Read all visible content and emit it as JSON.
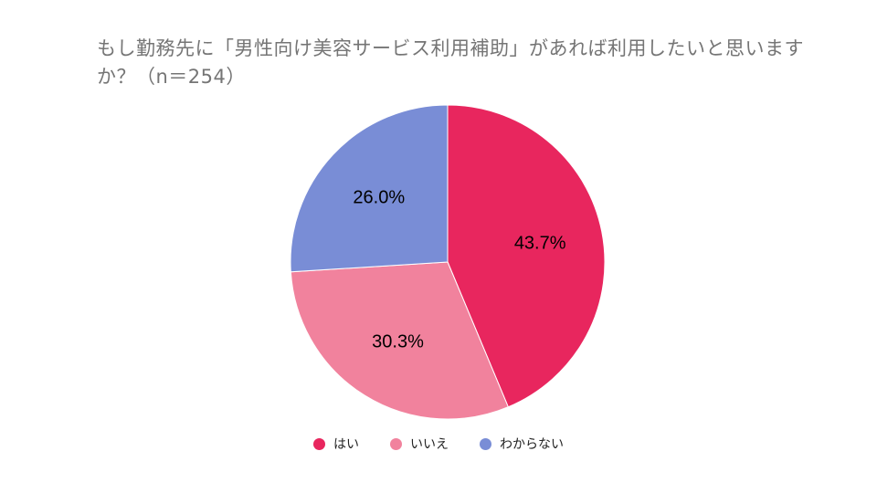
{
  "chart_data": {
    "type": "pie",
    "title": "もし勤務先に「男性向け美容サービス利用補助」があれば利用したいと思いますか？（n＝254）",
    "categories": [
      "はい",
      "いいえ",
      "わからない"
    ],
    "values": [
      43.7,
      30.3,
      26.0
    ],
    "value_labels": [
      "43.7%",
      "30.3%",
      "26.0%"
    ],
    "colors": [
      "#e8265e",
      "#f1829d",
      "#798dd6"
    ],
    "start_angle_deg": 0,
    "direction": "clockwise",
    "legend_position": "bottom"
  }
}
